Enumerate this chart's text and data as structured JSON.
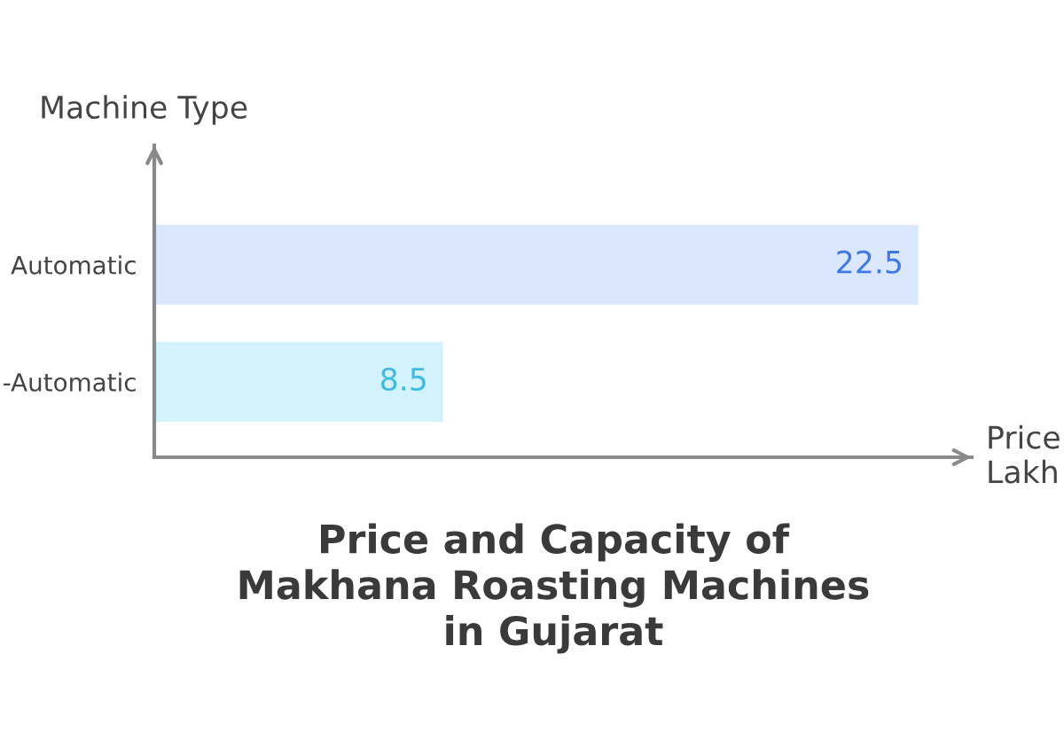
{
  "chart_data": {
    "type": "bar",
    "orientation": "horizontal",
    "title": "Price and Capacity of\nMakhana Roasting Machines\nin Gujarat",
    "xlabel": "Price\nLakh",
    "ylabel": "Machine Type",
    "categories": [
      "Automatic",
      "-Automatic"
    ],
    "values": [
      22.5,
      8.5
    ],
    "colors": [
      "#dbe7fd",
      "#d2f2fc"
    ],
    "data_labels": true,
    "grid": false
  }
}
